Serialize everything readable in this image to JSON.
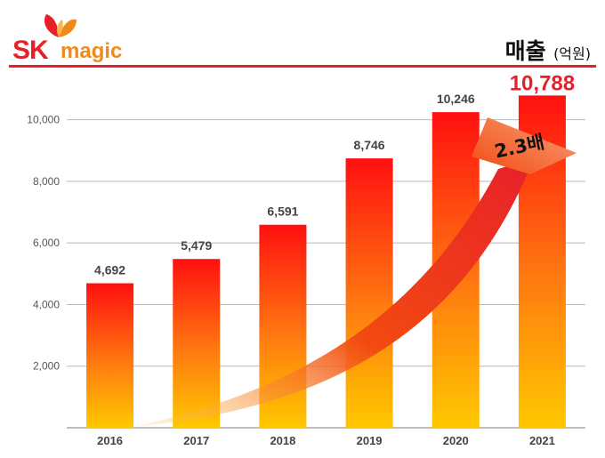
{
  "brand": {
    "logo_sk": "SK",
    "logo_magic": "magic",
    "accent_red": "#e8202a",
    "accent_orange": "#f08a1c"
  },
  "header": {
    "title": "매출",
    "unit": "(억원)"
  },
  "chart_data": {
    "type": "bar",
    "title": "매출 (억원)",
    "categories": [
      "2016",
      "2017",
      "2018",
      "2019",
      "2020",
      "2021"
    ],
    "values": [
      4692,
      5479,
      6591,
      8746,
      10246,
      10788
    ],
    "value_labels": [
      "4,692",
      "5,479",
      "6,591",
      "8,746",
      "10,246",
      "10,788"
    ],
    "ylim": [
      0,
      11000
    ],
    "yticks": [
      2000,
      4000,
      6000,
      8000,
      10000
    ],
    "ytick_labels": [
      "2,000",
      "4,000",
      "6,000",
      "8,000",
      "10,000"
    ],
    "grid": true,
    "highlight_index": 5,
    "bar_gradient_top": "#ff1010",
    "bar_gradient_bottom": "#ffc800",
    "annotation": "2.3배",
    "xlabel": "",
    "ylabel": ""
  }
}
